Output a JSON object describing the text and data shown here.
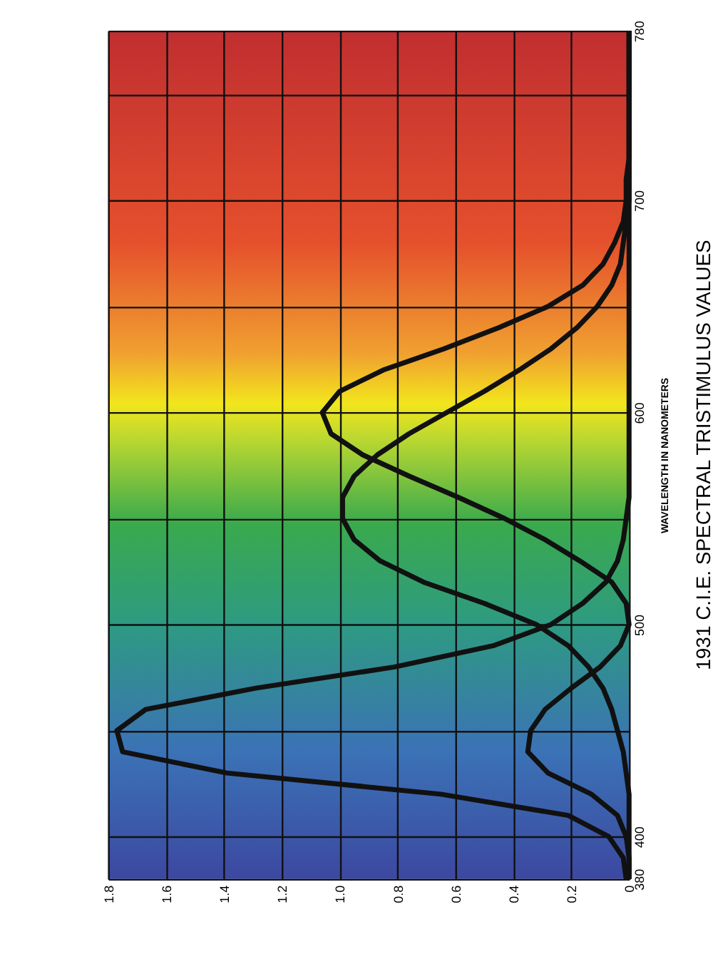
{
  "chart_data": {
    "type": "line",
    "title": "1931 C.I.E. SPECTRAL TRISTIMULUS VALUES",
    "ylabel": "WAVELENGTH IN NANOMETERS",
    "series": [
      {
        "color": "#111111",
        "x": [
          0.0,
          0.0,
          0.01,
          0.04,
          0.13,
          0.28,
          0.35,
          0.34,
          0.29,
          0.2,
          0.1,
          0.03,
          0.0,
          0.01,
          0.06,
          0.17,
          0.29,
          0.43,
          0.59,
          0.76,
          0.92,
          1.03,
          1.06,
          1.0,
          0.85,
          0.64,
          0.45,
          0.28,
          0.16,
          0.09,
          0.05,
          0.02,
          0.01,
          0.01,
          0.0,
          0.0,
          0.0,
          0.0,
          0.0,
          0.0,
          0.0
        ],
        "values": [
          380,
          390,
          400,
          410,
          420,
          430,
          440,
          450,
          460,
          470,
          480,
          490,
          500,
          510,
          520,
          530,
          540,
          550,
          560,
          570,
          580,
          590,
          600,
          610,
          620,
          630,
          640,
          650,
          660,
          670,
          680,
          690,
          700,
          710,
          720,
          730,
          740,
          750,
          760,
          770,
          780
        ]
      },
      {
        "color": "#111111",
        "x": [
          0.0,
          0.0,
          0.0,
          0.0,
          0.0,
          0.01,
          0.02,
          0.04,
          0.06,
          0.09,
          0.14,
          0.21,
          0.32,
          0.5,
          0.71,
          0.86,
          0.95,
          0.99,
          0.99,
          0.95,
          0.87,
          0.76,
          0.63,
          0.5,
          0.38,
          0.27,
          0.18,
          0.11,
          0.06,
          0.03,
          0.02,
          0.01,
          0.0,
          0.0,
          0.0,
          0.0,
          0.0,
          0.0,
          0.0,
          0.0,
          0.0
        ],
        "values": [
          380,
          390,
          400,
          410,
          420,
          430,
          440,
          450,
          460,
          470,
          480,
          490,
          500,
          510,
          520,
          530,
          540,
          550,
          560,
          570,
          580,
          590,
          600,
          610,
          620,
          630,
          640,
          650,
          660,
          670,
          680,
          690,
          700,
          710,
          720,
          730,
          740,
          750,
          760,
          770,
          780
        ]
      },
      {
        "color": "#111111",
        "x": [
          0.01,
          0.02,
          0.07,
          0.21,
          0.65,
          1.39,
          1.75,
          1.77,
          1.67,
          1.29,
          0.81,
          0.47,
          0.27,
          0.16,
          0.08,
          0.04,
          0.02,
          0.01,
          0.0,
          0.0,
          0.0,
          0.0,
          0.0,
          0.0,
          0.0,
          0.0,
          0.0,
          0.0,
          0.0,
          0.0,
          0.0,
          0.0,
          0.0,
          0.0,
          0.0,
          0.0,
          0.0,
          0.0,
          0.0,
          0.0,
          0.0
        ],
        "values": [
          380,
          390,
          400,
          410,
          420,
          430,
          440,
          450,
          460,
          470,
          480,
          490,
          500,
          510,
          520,
          530,
          540,
          550,
          560,
          570,
          580,
          590,
          600,
          610,
          620,
          630,
          640,
          650,
          660,
          670,
          680,
          690,
          700,
          710,
          720,
          730,
          740,
          750,
          760,
          770,
          780
        ]
      }
    ],
    "xlim": [
      1.8,
      0
    ],
    "ylim": [
      380,
      780
    ],
    "xticks": [
      1.8,
      1.6,
      1.4,
      1.2,
      {
        "value": 1,
        "label": "1.0"
      },
      0.8,
      0.6,
      0.4,
      0.2,
      0
    ],
    "yticks": [
      380,
      400,
      {
        "value": 450,
        "label": null
      },
      500,
      {
        "value": 550,
        "label": null
      },
      600,
      {
        "value": 650,
        "label": null
      },
      700,
      {
        "value": 750,
        "label": null
      },
      780
    ],
    "grid": true,
    "marker": "none",
    "line_style": "solid"
  }
}
